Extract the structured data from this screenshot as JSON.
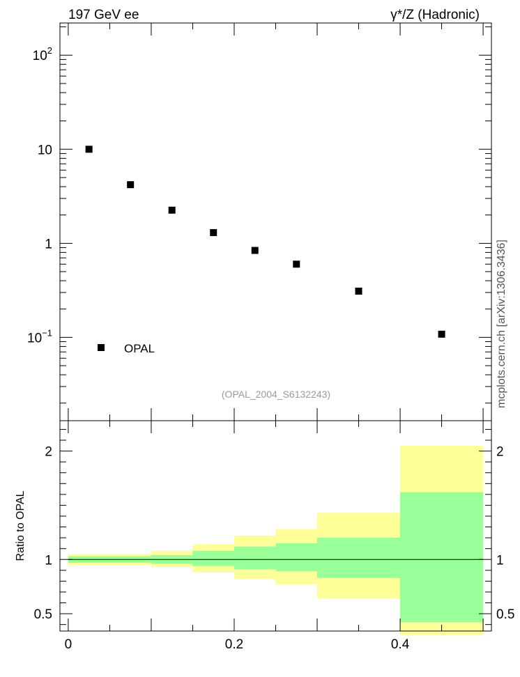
{
  "header": {
    "left_label": "197 GeV ee",
    "right_label": "γ*/Z (Hadronic)"
  },
  "side_label": "mcplots.cern.ch [arXiv:1306.3436]",
  "chart_data": [
    {
      "type": "scatter",
      "yscale": "log",
      "xlim": [
        -0.01,
        0.51
      ],
      "ylim": [
        0.013,
        220
      ],
      "y_ticks": [
        {
          "value": 0.1,
          "base": "10",
          "exp": "−1"
        },
        {
          "value": 1,
          "label": "1"
        },
        {
          "value": 10,
          "label": "10"
        },
        {
          "value": 100,
          "base": "10",
          "exp": "2"
        }
      ],
      "series": [
        {
          "name": "OPAL",
          "color": "#000000",
          "x": [
            0.025,
            0.075,
            0.125,
            0.175,
            0.225,
            0.275,
            0.35,
            0.45
          ],
          "y": [
            10.0,
            4.2,
            2.25,
            1.3,
            0.84,
            0.6,
            0.31,
            0.108
          ]
        }
      ],
      "legend": {
        "position": "bottom-left",
        "label": "OPAL"
      },
      "annotation": "(OPAL_2004_S6132243)"
    },
    {
      "type": "area",
      "ylabel": "Ratio to OPAL",
      "xlim": [
        -0.01,
        0.51
      ],
      "ylim": [
        0.34,
        2.28
      ],
      "x_ticks": [
        0,
        0.2,
        0.4
      ],
      "x_tick_labels": [
        "0",
        "0.2",
        "0.4"
      ],
      "y_ticks": [
        0.5,
        1,
        2
      ],
      "y_tick_labels": [
        "0.5",
        "1",
        "2"
      ],
      "reference_line": 1,
      "bins": [
        {
          "x0": 0.0,
          "x1": 0.1,
          "inner": [
            0.97,
            1.03
          ],
          "outer": [
            0.95,
            1.05
          ]
        },
        {
          "x0": 0.1,
          "x1": 0.15,
          "inner": [
            0.96,
            1.04
          ],
          "outer": [
            0.93,
            1.08
          ]
        },
        {
          "x0": 0.15,
          "x1": 0.2,
          "inner": [
            0.94,
            1.08
          ],
          "outer": [
            0.88,
            1.14
          ]
        },
        {
          "x0": 0.2,
          "x1": 0.25,
          "inner": [
            0.91,
            1.12
          ],
          "outer": [
            0.82,
            1.22
          ]
        },
        {
          "x0": 0.25,
          "x1": 0.3,
          "inner": [
            0.89,
            1.15
          ],
          "outer": [
            0.77,
            1.28
          ]
        },
        {
          "x0": 0.3,
          "x1": 0.4,
          "inner": [
            0.83,
            1.2
          ],
          "outer": [
            0.64,
            1.43
          ]
        },
        {
          "x0": 0.4,
          "x1": 0.5,
          "inner": [
            0.42,
            1.62
          ],
          "outer": [
            0.3,
            2.05
          ]
        }
      ],
      "colors": {
        "inner": "#99ff99",
        "outer": "#ffff99"
      }
    }
  ]
}
